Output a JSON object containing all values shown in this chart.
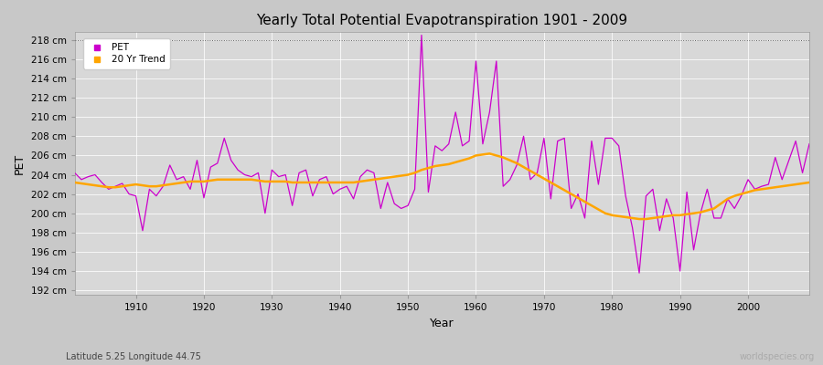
{
  "title": "Yearly Total Potential Evapotranspiration 1901 - 2009",
  "xlabel": "Year",
  "ylabel": "PET",
  "subtitle": "Latitude 5.25 Longitude 44.75",
  "watermark": "worldspecies.org",
  "fig_bg_color": "#c8c8c8",
  "plot_bg_color": "#d8d8d8",
  "pet_color": "#cc00cc",
  "trend_color": "#ffa500",
  "ylim": [
    191.5,
    218.8
  ],
  "xlim": [
    1901,
    2009
  ],
  "yticks": [
    192,
    194,
    196,
    198,
    200,
    202,
    204,
    206,
    208,
    210,
    212,
    214,
    216,
    218
  ],
  "xticks": [
    1910,
    1920,
    1930,
    1940,
    1950,
    1960,
    1970,
    1980,
    1990,
    2000
  ],
  "years": [
    1901,
    1902,
    1903,
    1904,
    1905,
    1906,
    1907,
    1908,
    1909,
    1910,
    1911,
    1912,
    1913,
    1914,
    1915,
    1916,
    1917,
    1918,
    1919,
    1920,
    1921,
    1922,
    1923,
    1924,
    1925,
    1926,
    1927,
    1928,
    1929,
    1930,
    1931,
    1932,
    1933,
    1934,
    1935,
    1936,
    1937,
    1938,
    1939,
    1940,
    1941,
    1942,
    1943,
    1944,
    1945,
    1946,
    1947,
    1948,
    1949,
    1950,
    1951,
    1952,
    1953,
    1954,
    1955,
    1956,
    1957,
    1958,
    1959,
    1960,
    1961,
    1962,
    1963,
    1964,
    1965,
    1966,
    1967,
    1968,
    1969,
    1970,
    1971,
    1972,
    1973,
    1974,
    1975,
    1976,
    1977,
    1978,
    1979,
    1980,
    1981,
    1982,
    1983,
    1984,
    1985,
    1986,
    1987,
    1988,
    1989,
    1990,
    1991,
    1992,
    1993,
    1994,
    1995,
    1996,
    1997,
    1998,
    1999,
    2000,
    2001,
    2002,
    2003,
    2004,
    2005,
    2006,
    2007,
    2008,
    2009
  ],
  "pet_values": [
    204.2,
    203.5,
    203.8,
    204.0,
    203.2,
    202.5,
    202.8,
    203.1,
    202.0,
    201.8,
    198.2,
    202.5,
    201.8,
    202.8,
    205.0,
    203.5,
    203.8,
    202.5,
    205.5,
    201.6,
    204.8,
    205.2,
    207.8,
    205.5,
    204.5,
    204.0,
    203.8,
    204.2,
    200.0,
    204.5,
    203.8,
    204.0,
    200.8,
    204.2,
    204.5,
    201.8,
    203.5,
    203.8,
    202.0,
    202.5,
    202.8,
    201.5,
    203.8,
    204.5,
    204.2,
    200.5,
    203.2,
    201.0,
    200.5,
    200.8,
    202.5,
    218.5,
    202.2,
    207.0,
    206.5,
    207.2,
    210.5,
    207.0,
    207.5,
    215.8,
    207.2,
    210.5,
    215.8,
    202.8,
    203.5,
    205.0,
    208.0,
    203.5,
    204.2,
    207.8,
    201.5,
    207.5,
    207.8,
    200.5,
    202.0,
    199.5,
    207.5,
    203.0,
    207.8,
    207.8,
    207.0,
    201.8,
    198.5,
    193.8,
    201.8,
    202.5,
    198.2,
    201.5,
    199.5,
    194.0,
    202.2,
    196.2,
    200.0,
    202.5,
    199.5,
    199.5,
    201.5,
    200.5,
    201.8,
    203.5,
    202.5,
    202.8,
    203.0,
    205.8,
    203.5,
    205.5,
    207.5,
    204.2,
    207.2
  ],
  "trend_values": [
    203.2,
    203.1,
    203.0,
    202.9,
    202.8,
    202.7,
    202.7,
    202.8,
    202.9,
    203.0,
    202.9,
    202.8,
    202.8,
    202.9,
    203.0,
    203.1,
    203.2,
    203.3,
    203.3,
    203.3,
    203.4,
    203.5,
    203.5,
    203.5,
    203.5,
    203.5,
    203.5,
    203.4,
    203.3,
    203.3,
    203.3,
    203.3,
    203.2,
    203.2,
    203.2,
    203.2,
    203.2,
    203.2,
    203.2,
    203.2,
    203.2,
    203.2,
    203.3,
    203.4,
    203.5,
    203.6,
    203.7,
    203.8,
    203.9,
    204.0,
    204.2,
    204.5,
    204.7,
    204.9,
    205.0,
    205.1,
    205.3,
    205.5,
    205.7,
    206.0,
    206.1,
    206.2,
    206.0,
    205.8,
    205.5,
    205.2,
    204.8,
    204.4,
    204.0,
    203.6,
    203.2,
    202.8,
    202.4,
    202.0,
    201.6,
    201.2,
    200.8,
    200.4,
    200.0,
    199.8,
    199.7,
    199.6,
    199.5,
    199.4,
    199.4,
    199.5,
    199.6,
    199.7,
    199.8,
    199.8,
    199.9,
    200.0,
    200.1,
    200.3,
    200.5,
    201.0,
    201.5,
    201.8,
    202.0,
    202.2,
    202.4,
    202.5,
    202.6,
    202.7,
    202.8,
    202.9,
    203.0,
    203.1,
    203.2
  ]
}
